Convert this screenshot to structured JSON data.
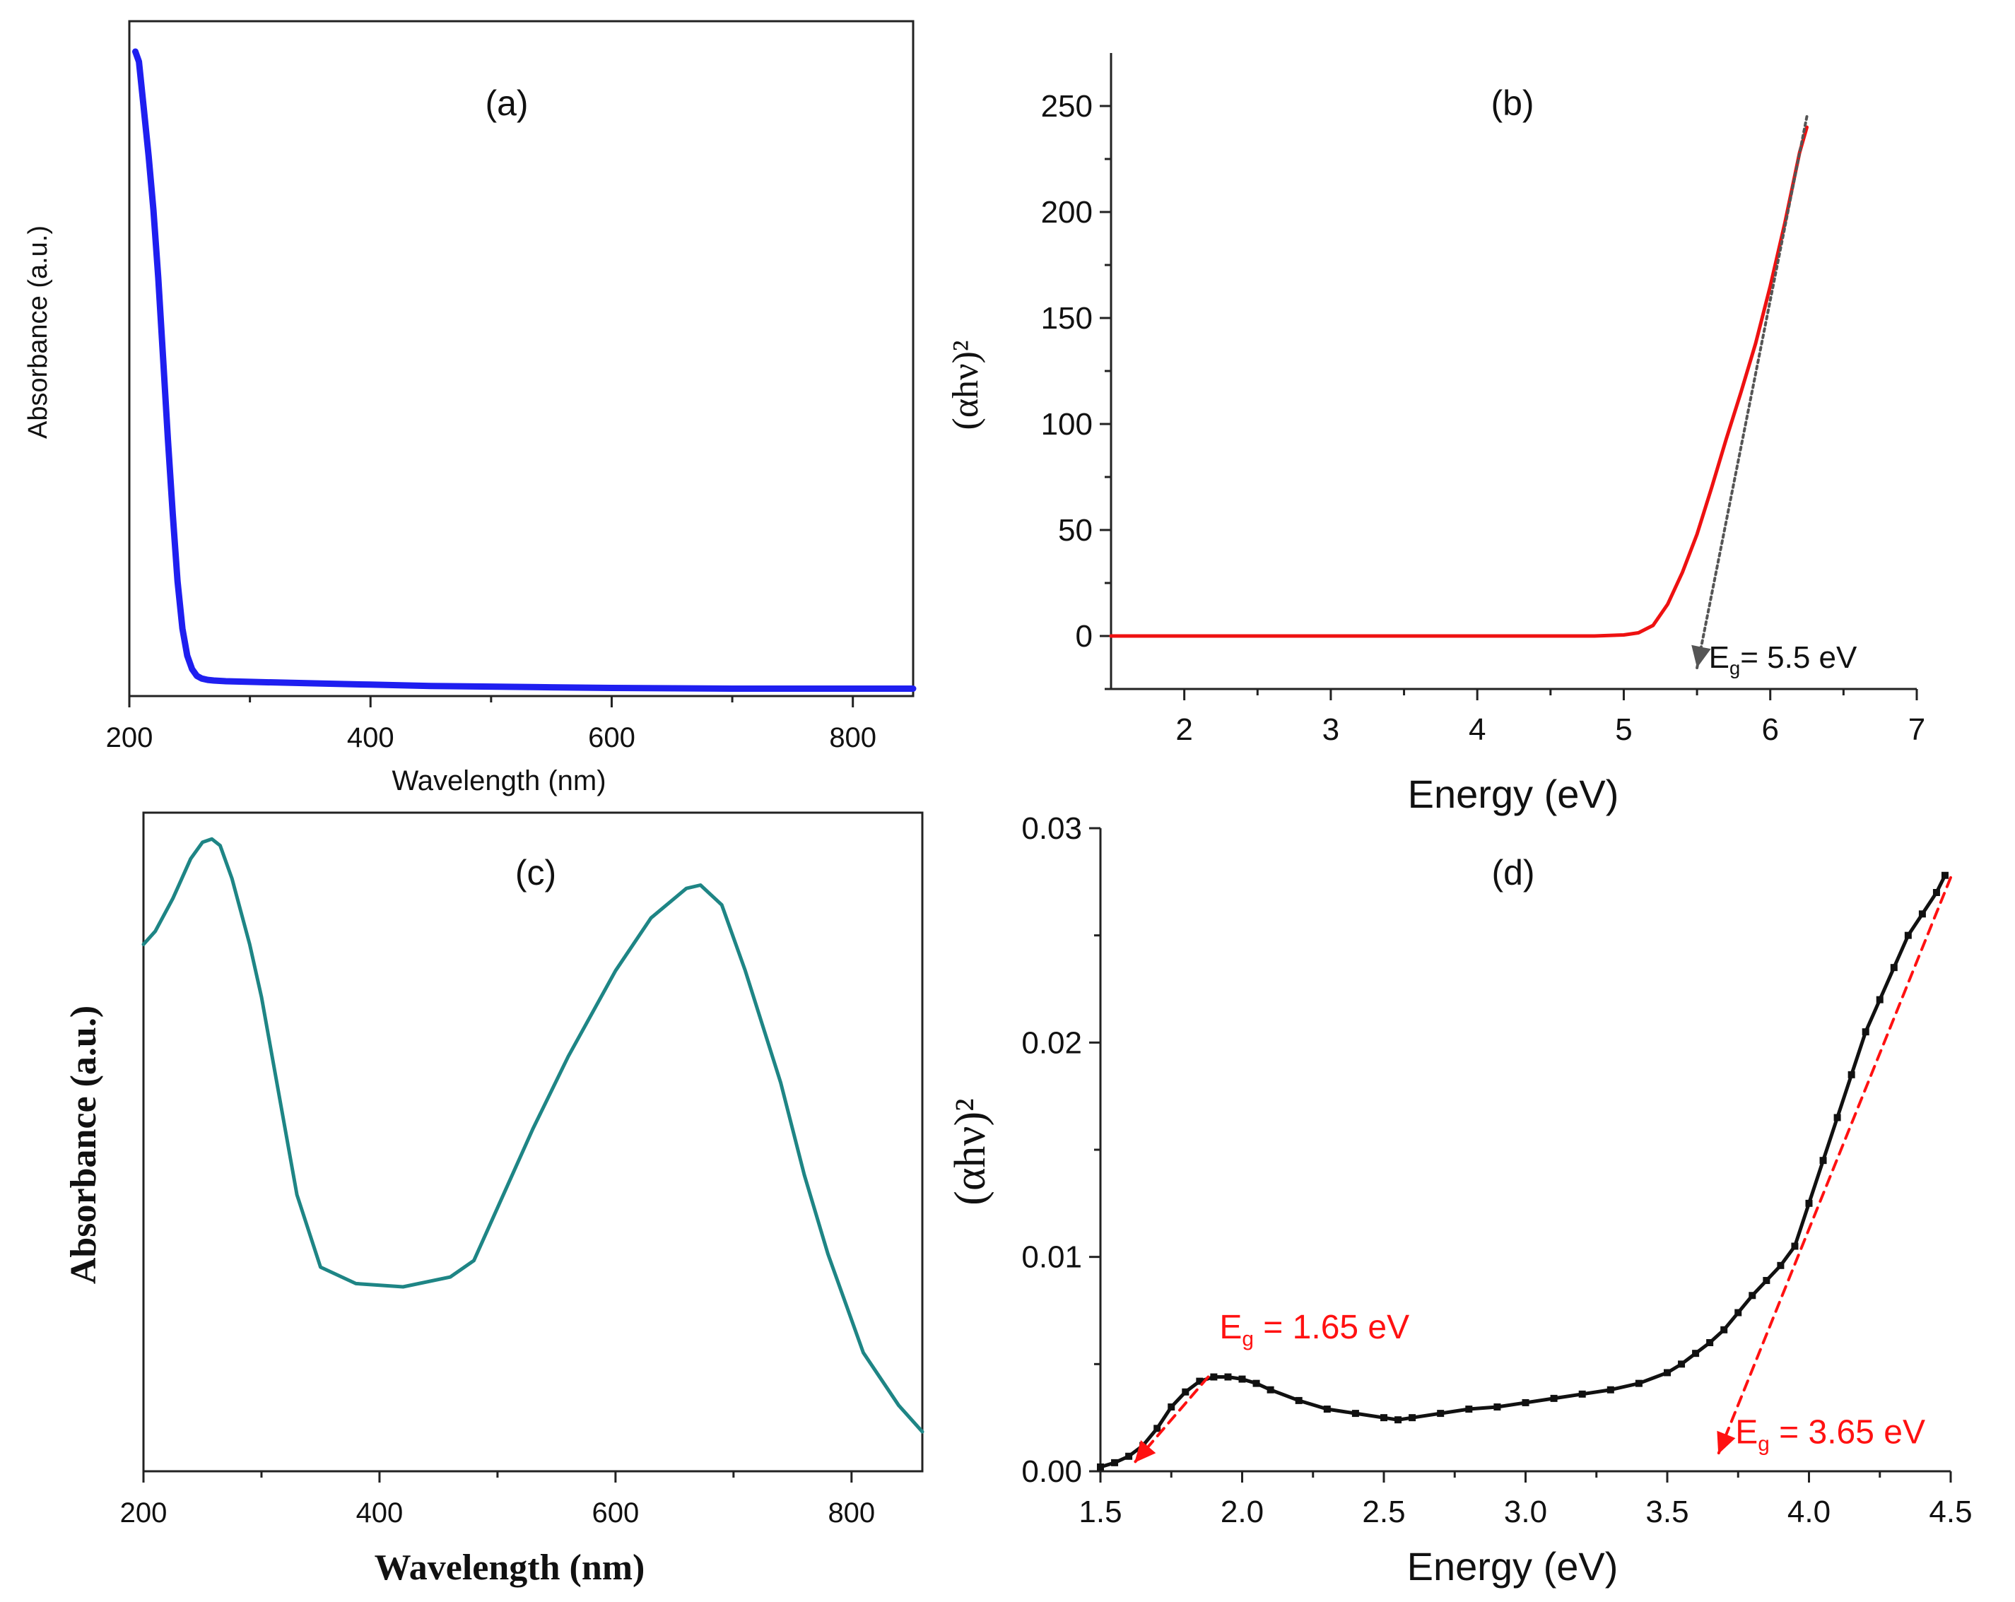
{
  "chart_data": [
    {
      "id": "a",
      "type": "line",
      "panel_label": "(a)",
      "xlabel": "Wavelength (nm)",
      "ylabel": "Absorbance (a.u.)",
      "xlim": [
        200,
        850
      ],
      "ylim": [
        0,
        1
      ],
      "xticks": [
        200,
        400,
        600,
        800
      ],
      "yticks": [],
      "box": true,
      "series": [
        {
          "name": "absorbance",
          "color": "#1f1ff0",
          "x": [
            205,
            208,
            212,
            216,
            220,
            224,
            228,
            232,
            236,
            240,
            244,
            248,
            252,
            256,
            260,
            265,
            270,
            280,
            300,
            350,
            400,
            450,
            500,
            550,
            600,
            700,
            800,
            850
          ],
          "y": [
            0.955,
            0.94,
            0.87,
            0.8,
            0.72,
            0.62,
            0.5,
            0.38,
            0.27,
            0.17,
            0.1,
            0.06,
            0.04,
            0.03,
            0.026,
            0.024,
            0.023,
            0.022,
            0.021,
            0.019,
            0.017,
            0.015,
            0.014,
            0.013,
            0.012,
            0.011,
            0.011,
            0.011
          ]
        }
      ]
    },
    {
      "id": "b",
      "type": "line",
      "panel_label": "(b)",
      "xlabel": "Energy (eV)",
      "ylabel": "(αhν)²",
      "xlim": [
        1.5,
        7
      ],
      "ylim": [
        -25,
        275
      ],
      "xticks": [
        2,
        3,
        4,
        5,
        6,
        7
      ],
      "yticks": [
        0,
        50,
        100,
        150,
        200,
        250
      ],
      "box": false,
      "series": [
        {
          "name": "(αhν)²",
          "color": "#ee1111",
          "x": [
            1.5,
            2,
            3,
            4,
            4.8,
            5.0,
            5.1,
            5.2,
            5.3,
            5.4,
            5.5,
            5.6,
            5.7,
            5.8,
            5.9,
            6.0,
            6.1,
            6.2,
            6.25
          ],
          "y": [
            0,
            0,
            0,
            0,
            0,
            0.5,
            1.5,
            5,
            15,
            30,
            48,
            70,
            93,
            115,
            138,
            165,
            195,
            228,
            240
          ]
        },
        {
          "name": "fit",
          "color": "#555555",
          "dashed": true,
          "x": [
            6.25,
            5.5
          ],
          "y": [
            245,
            -15
          ]
        }
      ],
      "annotations": [
        {
          "text": "E",
          "sub": "g",
          "rest": "= 5.5 eV",
          "x": 5.58,
          "y": -15,
          "color": "#111111"
        }
      ]
    },
    {
      "id": "c",
      "type": "line",
      "panel_label": "(c)",
      "xlabel": "Wavelength (nm)",
      "ylabel": "Absorbance (a.u.)",
      "xlim": [
        200,
        860
      ],
      "ylim": [
        0,
        1
      ],
      "xticks": [
        200,
        400,
        600,
        800
      ],
      "yticks": [],
      "box": true,
      "series": [
        {
          "name": "absorbance",
          "color": "#1e8585",
          "x": [
            200,
            210,
            225,
            240,
            250,
            258,
            265,
            275,
            290,
            300,
            310,
            330,
            350,
            380,
            420,
            460,
            480,
            500,
            530,
            560,
            600,
            630,
            660,
            672,
            690,
            710,
            740,
            760,
            780,
            810,
            840,
            860
          ],
          "y": [
            0.8,
            0.82,
            0.87,
            0.93,
            0.955,
            0.96,
            0.95,
            0.9,
            0.8,
            0.72,
            0.62,
            0.42,
            0.31,
            0.285,
            0.28,
            0.295,
            0.32,
            0.4,
            0.52,
            0.63,
            0.76,
            0.84,
            0.885,
            0.89,
            0.86,
            0.76,
            0.59,
            0.45,
            0.33,
            0.18,
            0.1,
            0.06
          ]
        }
      ]
    },
    {
      "id": "d",
      "type": "scatter",
      "panel_label": "(d)",
      "xlabel": "Energy (eV)",
      "ylabel": "(αhν)²",
      "xlim": [
        1.5,
        4.5
      ],
      "ylim": [
        0,
        0.03
      ],
      "xticks": [
        1.5,
        2.0,
        2.5,
        3.0,
        3.5,
        4.0,
        4.5
      ],
      "xtick_labels": [
        "1.5",
        "2.0",
        "2.5",
        "3.0",
        "3.5",
        "4.0",
        "4.5"
      ],
      "yticks": [
        0,
        0.01,
        0.02,
        0.03
      ],
      "ytick_labels": [
        "0.00",
        "0.01",
        "0.02",
        "0.03"
      ],
      "box": false,
      "series": [
        {
          "name": "(αhν)²",
          "color": "#111111",
          "x": [
            1.5,
            1.55,
            1.6,
            1.65,
            1.7,
            1.75,
            1.8,
            1.85,
            1.9,
            1.95,
            2.0,
            2.05,
            2.1,
            2.2,
            2.3,
            2.4,
            2.5,
            2.55,
            2.6,
            2.7,
            2.8,
            2.9,
            3.0,
            3.1,
            3.2,
            3.3,
            3.4,
            3.5,
            3.55,
            3.6,
            3.65,
            3.7,
            3.75,
            3.8,
            3.85,
            3.9,
            3.95,
            4.0,
            4.05,
            4.1,
            4.15,
            4.2,
            4.25,
            4.3,
            4.35,
            4.4,
            4.45,
            4.48
          ],
          "y": [
            0.0002,
            0.0004,
            0.0007,
            0.0012,
            0.002,
            0.003,
            0.0037,
            0.0042,
            0.0044,
            0.0044,
            0.0043,
            0.0041,
            0.0038,
            0.0033,
            0.0029,
            0.0027,
            0.0025,
            0.0024,
            0.0025,
            0.0027,
            0.0029,
            0.003,
            0.0032,
            0.0034,
            0.0036,
            0.0038,
            0.0041,
            0.0046,
            0.005,
            0.0055,
            0.006,
            0.0066,
            0.0074,
            0.0082,
            0.0089,
            0.0096,
            0.0105,
            0.0125,
            0.0145,
            0.0165,
            0.0185,
            0.0205,
            0.022,
            0.0235,
            0.025,
            0.026,
            0.027,
            0.0278
          ]
        },
        {
          "name": "fit-low",
          "color": "#ff1111",
          "dashed": true,
          "x": [
            1.88,
            1.62
          ],
          "y": [
            0.0044,
            0.0004
          ]
        },
        {
          "name": "fit-high",
          "color": "#ff1111",
          "dashed": true,
          "x": [
            4.5,
            3.68
          ],
          "y": [
            0.0277,
            0.0008
          ]
        }
      ],
      "annotations": [
        {
          "text": "E",
          "sub": "g",
          "rest": " = 1.65 eV",
          "x": 1.92,
          "y": 0.0062,
          "color": "#ff1111"
        },
        {
          "text": "E",
          "sub": "g",
          "rest": " = 3.65 eV",
          "x": 3.74,
          "y": 0.0013,
          "color": "#ff1111"
        }
      ]
    }
  ]
}
